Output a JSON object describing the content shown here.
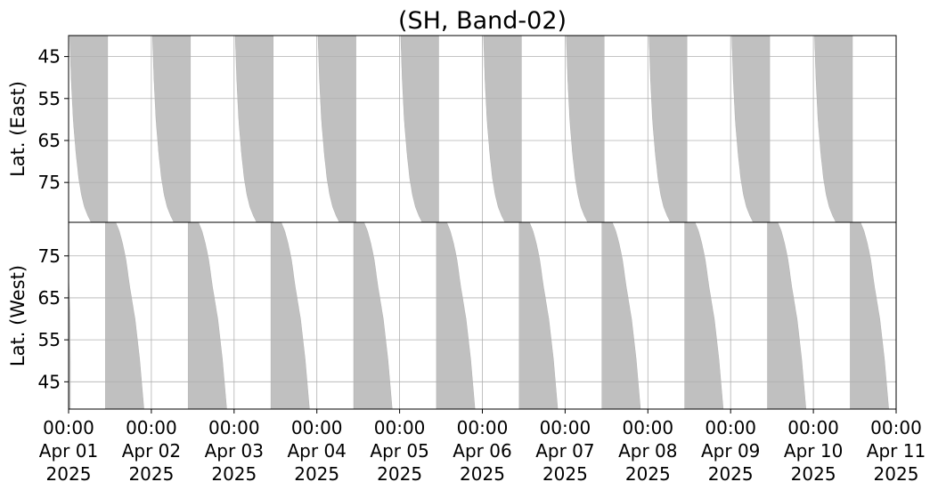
{
  "chart_data": {
    "type": "area",
    "title": "(SH, Band-02)",
    "xlabel": "",
    "x_tick_labels": [
      {
        "time": "00:00",
        "date": "Apr 01",
        "year": "2025"
      },
      {
        "time": "00:00",
        "date": "Apr 02",
        "year": "2025"
      },
      {
        "time": "00:00",
        "date": "Apr 03",
        "year": "2025"
      },
      {
        "time": "00:00",
        "date": "Apr 04",
        "year": "2025"
      },
      {
        "time": "00:00",
        "date": "Apr 05",
        "year": "2025"
      },
      {
        "time": "00:00",
        "date": "Apr 06",
        "year": "2025"
      },
      {
        "time": "00:00",
        "date": "Apr 07",
        "year": "2025"
      },
      {
        "time": "00:00",
        "date": "Apr 08",
        "year": "2025"
      },
      {
        "time": "00:00",
        "date": "Apr 09",
        "year": "2025"
      },
      {
        "time": "00:00",
        "date": "Apr 10",
        "year": "2025"
      },
      {
        "time": "00:00",
        "date": "Apr 11",
        "year": "2025"
      }
    ],
    "xlim": [
      "2025-04-01 00:00",
      "2025-04-11 00:00"
    ],
    "grid": true,
    "fill_color": "#c0c0c0",
    "panels": [
      {
        "ylabel": "Lat. (East)",
        "ylim": [
          40,
          84.5
        ],
        "y_inverted": false,
        "yticks": [
          45,
          55,
          65,
          75
        ]
      },
      {
        "ylabel": "Lat. (West)",
        "ylim": [
          38.5,
          83
        ],
        "y_inverted": true,
        "yticks": [
          75,
          65,
          55,
          45
        ]
      }
    ],
    "series": [
      {
        "panel": "Lat. (East)",
        "intervals_start": [
          "2025-04-01 00:20",
          "2025-04-02 00:20",
          "2025-04-03 00:20",
          "2025-04-04 00:20",
          "2025-04-05 00:20",
          "2025-04-06 00:20",
          "2025-04-07 00:20",
          "2025-04-08 00:20",
          "2025-04-09 00:20",
          "2025-04-10 00:20"
        ],
        "bottom_lat_profile": {
          "lat": [
            40,
            50,
            60,
            68,
            74,
            78,
            81,
            83,
            84.5
          ],
          "hours_after_start": [
            0,
            0.4,
            1.0,
            1.8,
            2.6,
            3.4,
            4.3,
            5.3,
            6.2
          ]
        },
        "top_lat_profile": {
          "lat": [
            40,
            84.5
          ],
          "hours_after_start": [
            11.0,
            11.0
          ]
        }
      },
      {
        "panel": "Lat. (West)",
        "intervals_start": [
          "2025-04-01 00:00",
          "2025-04-01 10:40",
          "2025-04-02 10:40",
          "2025-04-03 10:40",
          "2025-04-04 10:40",
          "2025-04-05 10:40",
          "2025-04-06 10:40",
          "2025-04-07 10:40",
          "2025-04-08 10:40",
          "2025-04-09 10:40",
          "2025-04-10 10:40"
        ],
        "note_first": "partial band at 2025-04-01 00:00 to 00:30",
        "bottom_lat_profile": {
          "lat": [
            38.5,
            83
          ],
          "hours_after_start": [
            0,
            0
          ]
        },
        "top_lat_profile": {
          "lat": [
            83,
            81,
            78,
            74,
            68,
            60,
            50,
            38.5
          ],
          "hours_after_start": [
            3.0,
            4.0,
            5.0,
            6.0,
            7.0,
            8.6,
            10.0,
            11.2
          ]
        }
      }
    ]
  }
}
